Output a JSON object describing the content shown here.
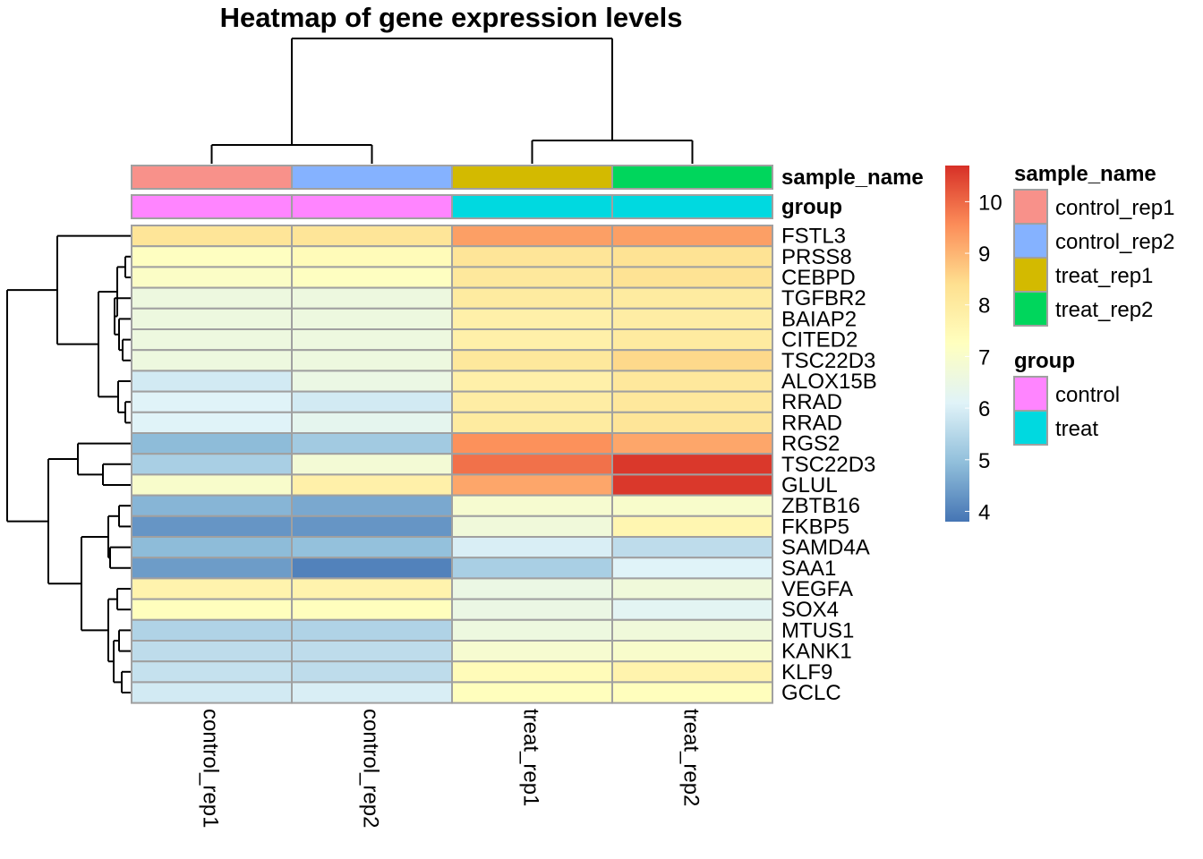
{
  "chart_data": {
    "type": "heatmap",
    "title": "Heatmap of gene expression levels",
    "columns": [
      "control_rep1",
      "control_rep2",
      "treat_rep1",
      "treat_rep2"
    ],
    "rows": [
      "FSTL3",
      "PRSS8",
      "CEBPD",
      "TGFBR2",
      "BAIAP2",
      "CITED2",
      "TSC22D3",
      "ALOX15B",
      "RRAD",
      "RRAD",
      "RGS2",
      "TSC22D3",
      "GLUL",
      "ZBTB16",
      "FKBP5",
      "SAMD4A",
      "SAA1",
      "VEGFA",
      "SOX4",
      "MTUS1",
      "KANK1",
      "KLF9",
      "GCLC"
    ],
    "values": [
      [
        8.2,
        8.2,
        9.3,
        9.3
      ],
      [
        7.2,
        7.4,
        8.2,
        8.3
      ],
      [
        7.1,
        7.2,
        8.1,
        8.3
      ],
      [
        6.6,
        6.6,
        8.0,
        8.0
      ],
      [
        6.6,
        6.6,
        7.8,
        7.9
      ],
      [
        6.6,
        6.6,
        7.8,
        8.0
      ],
      [
        6.6,
        6.6,
        8.1,
        8.5
      ],
      [
        5.9,
        6.5,
        7.8,
        8.1
      ],
      [
        6.1,
        5.9,
        7.9,
        8.1
      ],
      [
        6.1,
        6.3,
        8.0,
        8.2
      ],
      [
        4.9,
        5.2,
        9.5,
        9.2
      ],
      [
        5.3,
        6.8,
        9.9,
        10.6
      ],
      [
        7.0,
        7.8,
        9.2,
        10.6
      ],
      [
        4.8,
        4.6,
        6.9,
        7.0
      ],
      [
        4.3,
        4.3,
        6.7,
        7.6
      ],
      [
        4.9,
        5.0,
        6.0,
        5.6
      ],
      [
        4.4,
        4.0,
        5.3,
        6.1
      ],
      [
        7.7,
        7.7,
        6.5,
        6.7
      ],
      [
        7.3,
        7.3,
        6.5,
        6.2
      ],
      [
        5.4,
        5.4,
        6.6,
        6.7
      ],
      [
        5.6,
        5.6,
        6.9,
        7.0
      ],
      [
        5.7,
        5.6,
        7.4,
        7.7
      ],
      [
        5.9,
        6.0,
        7.3,
        7.3
      ]
    ],
    "color_scale": {
      "min": 3.8,
      "max": 10.7,
      "colors": [
        "#4575b4",
        "#91bfdb",
        "#e0f3f8",
        "#ffffbf",
        "#fee090",
        "#fc8d59",
        "#d73027"
      ],
      "ticks": [
        4,
        5,
        6,
        7,
        8,
        9,
        10
      ]
    },
    "annotations": {
      "sample_name": {
        "label": "sample_name",
        "values": [
          "control_rep1",
          "control_rep2",
          "treat_rep1",
          "treat_rep2"
        ],
        "legend": [
          {
            "label": "control_rep1",
            "color": "#f8918a"
          },
          {
            "label": "control_rep2",
            "color": "#85b2ff"
          },
          {
            "label": "treat_rep1",
            "color": "#d3ba00"
          },
          {
            "label": "treat_rep2",
            "color": "#00d65c"
          }
        ]
      },
      "group": {
        "label": "group",
        "values": [
          "control",
          "control",
          "treat",
          "treat"
        ],
        "legend": [
          {
            "label": "control",
            "color": "#ff85ff"
          },
          {
            "label": "treat",
            "color": "#00d9e0"
          }
        ]
      }
    },
    "grid": true,
    "legend_position": "right"
  }
}
